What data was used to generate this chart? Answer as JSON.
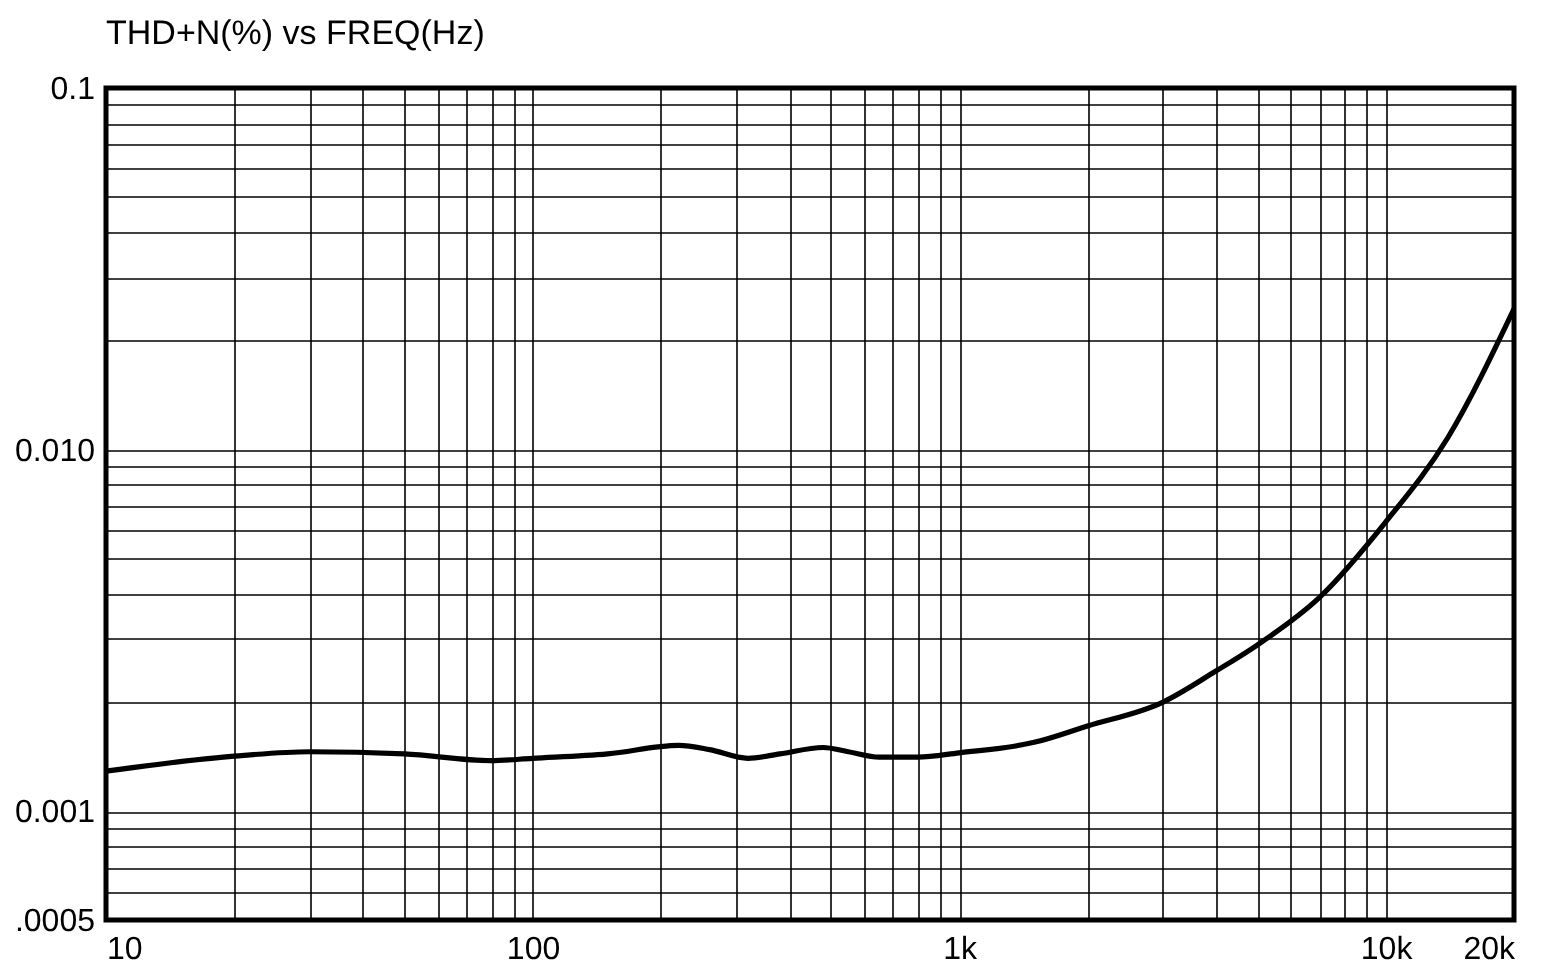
{
  "chart_data": {
    "type": "line",
    "title": "THD+N(%) vs FREQ(Hz)",
    "log": "xy",
    "grid": true,
    "marker": "none",
    "line_style": "solid",
    "xlim": [
      10,
      20000
    ],
    "ylim": [
      0.0005,
      0.1
    ],
    "xticks": [
      10,
      {
        "value": 20,
        "label": null
      },
      {
        "value": 30,
        "label": null
      },
      {
        "value": 40,
        "label": null
      },
      {
        "value": 50,
        "label": null
      },
      {
        "value": 60,
        "label": null
      },
      {
        "value": 70,
        "label": null
      },
      {
        "value": 80,
        "label": null
      },
      {
        "value": 90,
        "label": null
      },
      100,
      {
        "value": 200,
        "label": null
      },
      {
        "value": 300,
        "label": null
      },
      {
        "value": 400,
        "label": null
      },
      {
        "value": 500,
        "label": null
      },
      {
        "value": 600,
        "label": null
      },
      {
        "value": 700,
        "label": null
      },
      {
        "value": 800,
        "label": null
      },
      {
        "value": 900,
        "label": null
      },
      {
        "value": 1000,
        "label": "1k"
      },
      {
        "value": 2000,
        "label": null
      },
      {
        "value": 3000,
        "label": null
      },
      {
        "value": 4000,
        "label": null
      },
      {
        "value": 5000,
        "label": null
      },
      {
        "value": 6000,
        "label": null
      },
      {
        "value": 7000,
        "label": null
      },
      {
        "value": 8000,
        "label": null
      },
      {
        "value": 9000,
        "label": null
      },
      {
        "value": 10000,
        "label": "10k"
      },
      {
        "value": 20000,
        "label": "20k"
      }
    ],
    "yticks": [
      {
        "value": 0.0005,
        "label": ".0005"
      },
      {
        "value": 0.0006,
        "label": null
      },
      {
        "value": 0.0007,
        "label": null
      },
      {
        "value": 0.0008,
        "label": null
      },
      {
        "value": 0.0009,
        "label": null
      },
      0.001,
      {
        "value": 0.002,
        "label": null
      },
      {
        "value": 0.003,
        "label": null
      },
      {
        "value": 0.004,
        "label": null
      },
      {
        "value": 0.005,
        "label": null
      },
      {
        "value": 0.006,
        "label": null
      },
      {
        "value": 0.007,
        "label": null
      },
      {
        "value": 0.008,
        "label": null
      },
      {
        "value": 0.009,
        "label": null
      },
      {
        "value": 0.01,
        "label": "0.010"
      },
      {
        "value": 0.02,
        "label": null
      },
      {
        "value": 0.03,
        "label": null
      },
      {
        "value": 0.04,
        "label": null
      },
      {
        "value": 0.05,
        "label": null
      },
      {
        "value": 0.06,
        "label": null
      },
      {
        "value": 0.07,
        "label": null
      },
      {
        "value": 0.08,
        "label": null
      },
      {
        "value": 0.09,
        "label": null
      },
      0.1
    ],
    "series": [
      {
        "color": "#000000",
        "x": [
          10,
          20,
          30,
          50,
          80,
          100,
          150,
          220,
          260,
          320,
          380,
          480,
          550,
          650,
          800,
          1000,
          1500,
          2000,
          3000,
          4000,
          5000,
          7000,
          10000,
          14000,
          20000
        ],
        "values": [
          0.00129,
          0.00142,
          0.00146,
          0.00144,
          0.00138,
          0.0014,
          0.00144,
          0.00152,
          0.00148,
          0.0014,
          0.00144,
          0.0015,
          0.00146,
          0.00141,
          0.00141,
          0.00145,
          0.00155,
          0.00172,
          0.002,
          0.00244,
          0.00288,
          0.0039,
          0.0063,
          0.0108,
          0.0245
        ]
      }
    ]
  }
}
